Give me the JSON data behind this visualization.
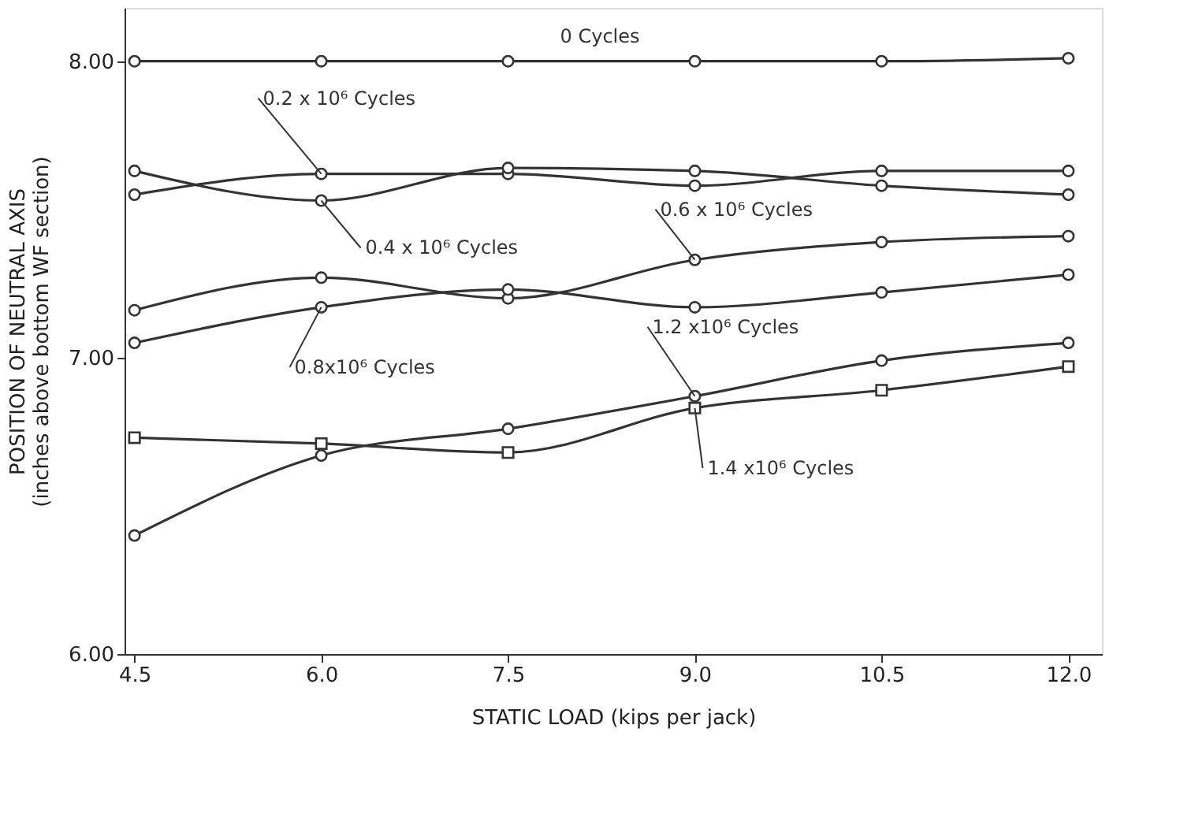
{
  "chart_data": {
    "type": "line",
    "xlabel": "STATIC LOAD (kips per jack)",
    "ylabel": "POSITION OF NEUTRAL AXIS\n(inches above bottom WF section)",
    "x": [
      4.5,
      6.0,
      7.5,
      9.0,
      10.5,
      12.0
    ],
    "xlim": [
      4.42,
      12.27
    ],
    "ylim": [
      6.0,
      8.18
    ],
    "xticks": [
      {
        "value": 4.5,
        "label": "4.5"
      },
      {
        "value": 6.0,
        "label": "6.0"
      },
      {
        "value": 7.5,
        "label": "7.5"
      },
      {
        "value": 9.0,
        "label": "9.0"
      },
      {
        "value": 10.5,
        "label": "10.5"
      },
      {
        "value": 12.0,
        "label": "12.0"
      }
    ],
    "yticks": [
      {
        "value": 6.0,
        "label": "6.00"
      },
      {
        "value": 7.0,
        "label": "7.00"
      },
      {
        "value": 8.0,
        "label": "8.00"
      }
    ],
    "grid": false,
    "legend": false,
    "line_style": "solid",
    "series": [
      {
        "name": "0 Cycles",
        "color": "#333333",
        "marker": "circle",
        "values": [
          8.0,
          8.0,
          8.0,
          8.0,
          8.0,
          8.01
        ]
      },
      {
        "name": "0.2 x 10⁶ Cycles",
        "color": "#333333",
        "marker": "circle",
        "values": [
          7.55,
          7.62,
          7.62,
          7.58,
          7.63,
          7.63
        ]
      },
      {
        "name": "0.4 x 10⁶ Cycles",
        "color": "#333333",
        "marker": "circle",
        "values": [
          7.63,
          7.53,
          7.64,
          7.63,
          7.58,
          7.55
        ]
      },
      {
        "name": "0.6 x 10⁶ Cycles",
        "color": "#333333",
        "marker": "circle",
        "values": [
          7.16,
          7.27,
          7.2,
          7.33,
          7.39,
          7.41
        ]
      },
      {
        "name": "0.8x10⁶ Cycles",
        "color": "#333333",
        "marker": "circle",
        "values": [
          7.05,
          7.17,
          7.23,
          7.17,
          7.22,
          7.28
        ]
      },
      {
        "name": "1.2 x10⁶ Cycles",
        "color": "#333333",
        "marker": "circle",
        "values": [
          6.4,
          6.67,
          6.76,
          6.87,
          6.99,
          7.05
        ]
      },
      {
        "name": "1.4 x10⁶ Cycles",
        "color": "#333333",
        "marker": "square",
        "values": [
          6.73,
          6.71,
          6.68,
          6.83,
          6.89,
          6.97
        ]
      }
    ]
  }
}
